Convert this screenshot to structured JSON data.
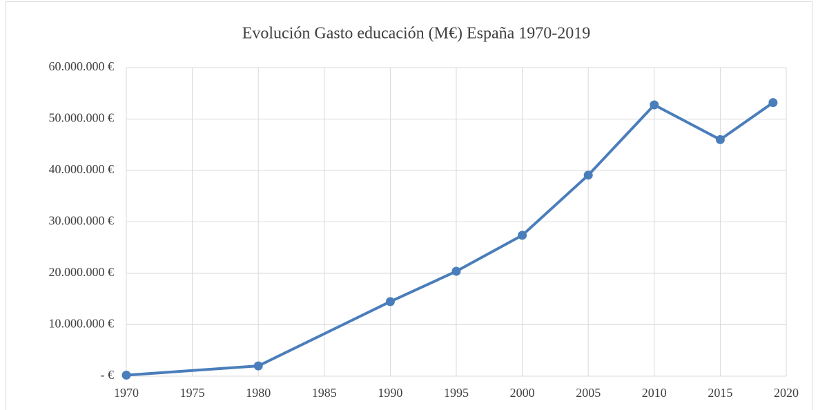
{
  "chart_data": {
    "type": "line",
    "title": "Evolución Gasto educación (M€) España 1970-2019",
    "x": [
      1970,
      1980,
      1990,
      1995,
      2000,
      2005,
      2010,
      2015,
      2019
    ],
    "series": [
      {
        "name": "Gasto educación",
        "color": "#4a7ebb",
        "values": [
          200000,
          2000000,
          14500000,
          20400000,
          27400000,
          39100000,
          52750000,
          46000000,
          53200000
        ]
      }
    ],
    "xlim": [
      1970,
      2020
    ],
    "xticks": [
      1970,
      1975,
      1980,
      1985,
      1990,
      1995,
      2000,
      2005,
      2010,
      2015,
      2020
    ],
    "ylim": [
      0,
      60000000
    ],
    "yticks": [
      {
        "value": 0,
        "label": "-  €"
      },
      {
        "value": 10000000,
        "label": "10.000.000 €"
      },
      {
        "value": 20000000,
        "label": "20.000.000 €"
      },
      {
        "value": 30000000,
        "label": "30.000.000 €"
      },
      {
        "value": 40000000,
        "label": "40.000.000 €"
      },
      {
        "value": 50000000,
        "label": "50.000.000 €"
      },
      {
        "value": 60000000,
        "label": "60.000.000 €"
      }
    ],
    "grid": true
  }
}
